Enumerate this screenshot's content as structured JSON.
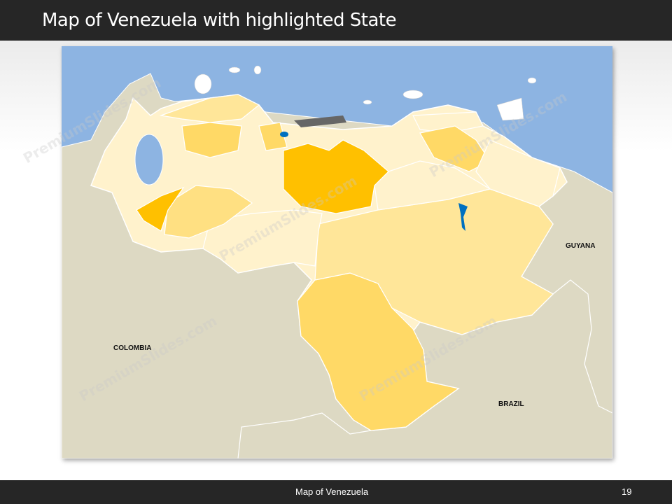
{
  "header": {
    "title": "Map of Venezuela with highlighted State"
  },
  "map": {
    "countries": {
      "colombia": "COLOMBIA",
      "guyana": "GUYANA",
      "brazil": "BRAZIL"
    },
    "highlighted_color": "#ffc000",
    "colors": {
      "ocean": "#8db4e2",
      "land": "#ddd9c3",
      "state_light": "#fff2cc",
      "state_mid": "#ffe699",
      "state_dark": "#ffd966",
      "lake": "#0070c0"
    }
  },
  "footer": {
    "caption": "Map of Venezuela",
    "page_number": "19"
  },
  "watermark": "PremiumSlides.com"
}
